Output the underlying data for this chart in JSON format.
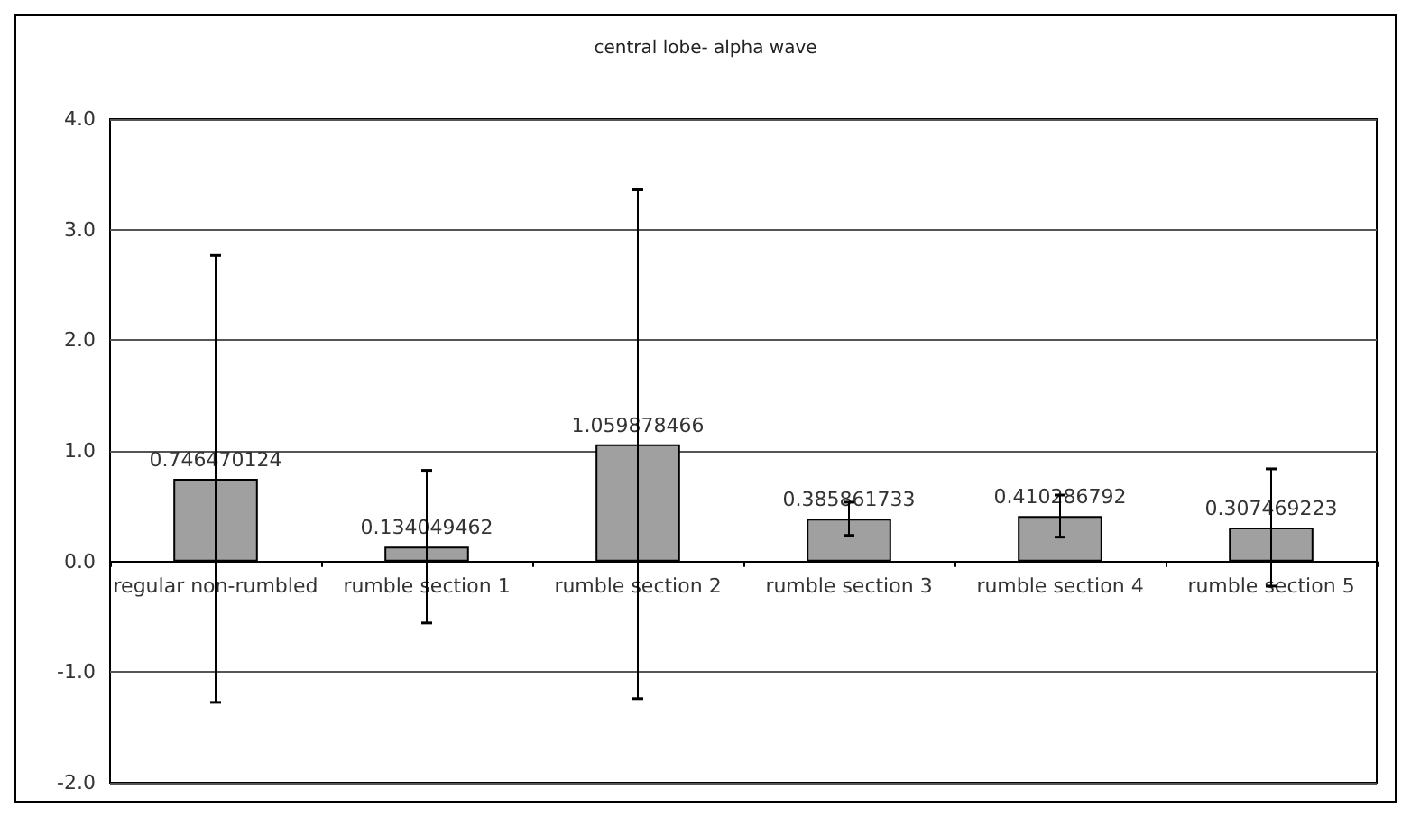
{
  "chart_data": {
    "type": "bar",
    "title": "central lobe- alpha wave",
    "categories": [
      "regular non-rumbled",
      "rumble section 1",
      "rumble section 2",
      "rumble section 3",
      "rumble section 4",
      "rumble section 5"
    ],
    "values": [
      0.746470124,
      0.134049462,
      1.059878466,
      0.385861733,
      0.410286792,
      0.307469223
    ],
    "errors": [
      2.02,
      0.69,
      2.3,
      0.15,
      0.19,
      0.53
    ],
    "color": "#a0a0a0",
    "ylim": [
      -2,
      4
    ],
    "yticks": [
      {
        "value": -2,
        "label": "-2.0"
      },
      {
        "value": -1,
        "label": "-1.0"
      },
      {
        "value": 0,
        "label": "0.0"
      },
      {
        "value": 1,
        "label": "1.0"
      },
      {
        "value": 2,
        "label": "2.0"
      },
      {
        "value": 3,
        "label": "3.0"
      },
      {
        "value": 4,
        "label": "4.0"
      }
    ],
    "grid": "y",
    "data_labels": true
  }
}
